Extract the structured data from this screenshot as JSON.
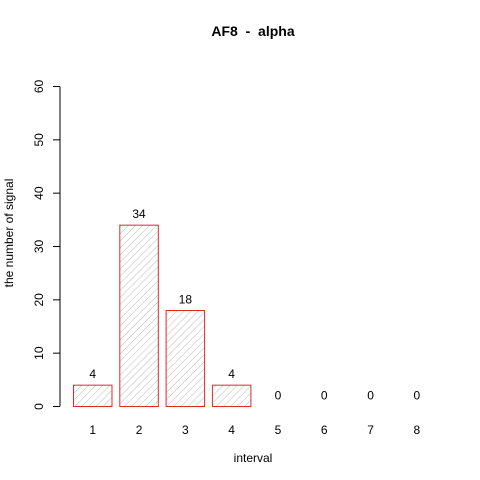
{
  "chart_data": {
    "type": "bar",
    "title": "AF8  -  alpha",
    "xlabel": "interval",
    "ylabel": "the number of signal",
    "categories": [
      "1",
      "2",
      "3",
      "4",
      "5",
      "6",
      "7",
      "8"
    ],
    "values": [
      4,
      34,
      18,
      4,
      0,
      0,
      0,
      0
    ],
    "data_labels": [
      "4",
      "34",
      "18",
      "4",
      "0",
      "0",
      "0",
      "0"
    ],
    "ylim": [
      0,
      60
    ],
    "yticks": [
      0,
      10,
      20,
      30,
      40,
      50,
      60
    ],
    "grid": false,
    "legend": "none",
    "colors": {
      "bar_border": "#e0282e",
      "hatch": "#aaaaaa"
    }
  }
}
